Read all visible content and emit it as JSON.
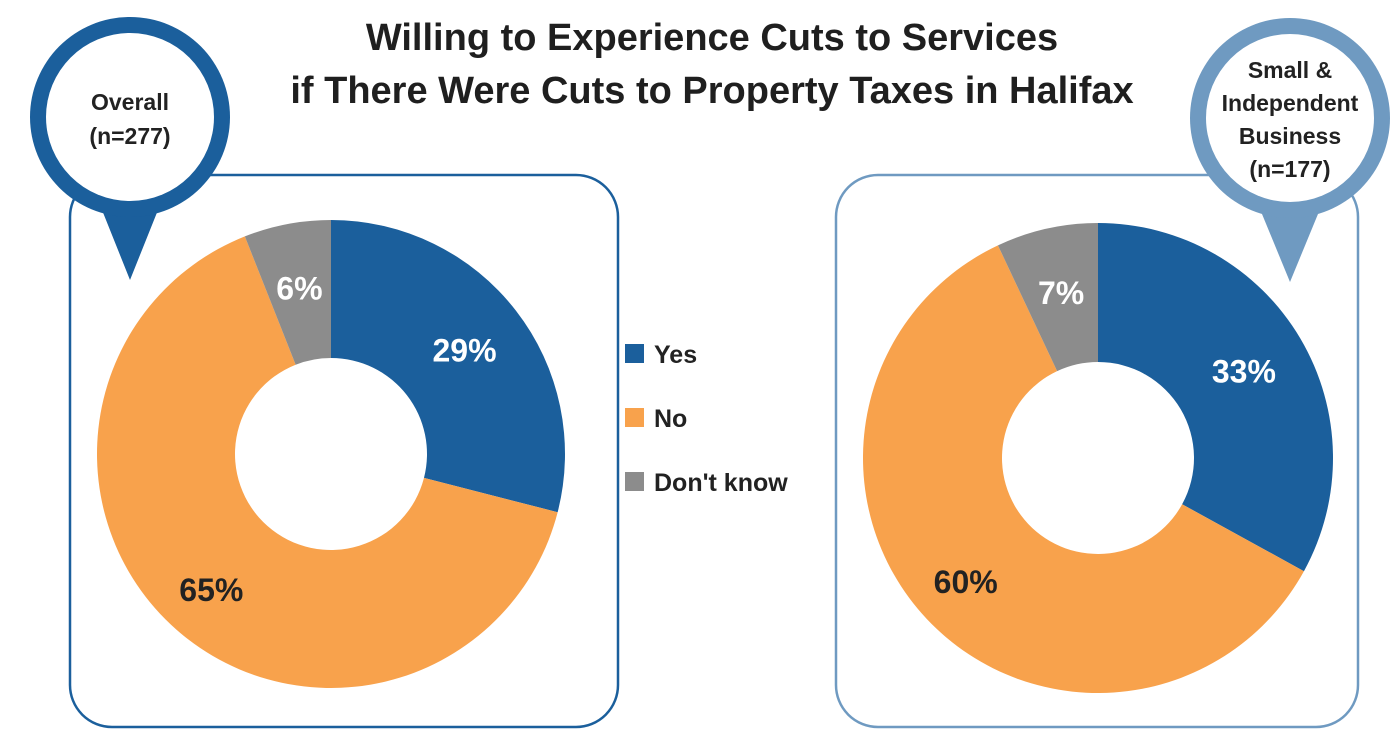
{
  "title_lines": [
    "Willing to Experience Cuts to Services",
    "if There Were Cuts to Property Taxes in Halifax"
  ],
  "colors": {
    "yes": "#1b5f9c",
    "no": "#f8a24c",
    "dont_know": "#8c8c8c",
    "pin_dark": "#1b5f9c",
    "pin_light": "#6f9ac1",
    "panel_border_dark": "#1b5f9c",
    "panel_border_light": "#6f9ac1"
  },
  "legend": {
    "items": [
      {
        "label": "Yes",
        "color_key": "yes"
      },
      {
        "label": "No",
        "color_key": "no"
      },
      {
        "label": "Don't know",
        "color_key": "dont_know"
      }
    ]
  },
  "chart_data": [
    {
      "type": "pie",
      "title": "",
      "group_label_lines": [
        "Overall",
        "(n=277)"
      ],
      "categories": [
        "Yes",
        "No",
        "Don't know"
      ],
      "values": [
        29,
        65,
        6
      ],
      "labels": [
        "29%",
        "65%",
        "6%"
      ]
    },
    {
      "type": "pie",
      "title": "",
      "group_label_lines": [
        "Small &",
        "Independent",
        "Business",
        "(n=177)"
      ],
      "categories": [
        "Yes",
        "No",
        "Don't know"
      ],
      "values": [
        33,
        60,
        7
      ],
      "labels": [
        "33%",
        "60%",
        "7%"
      ]
    }
  ]
}
